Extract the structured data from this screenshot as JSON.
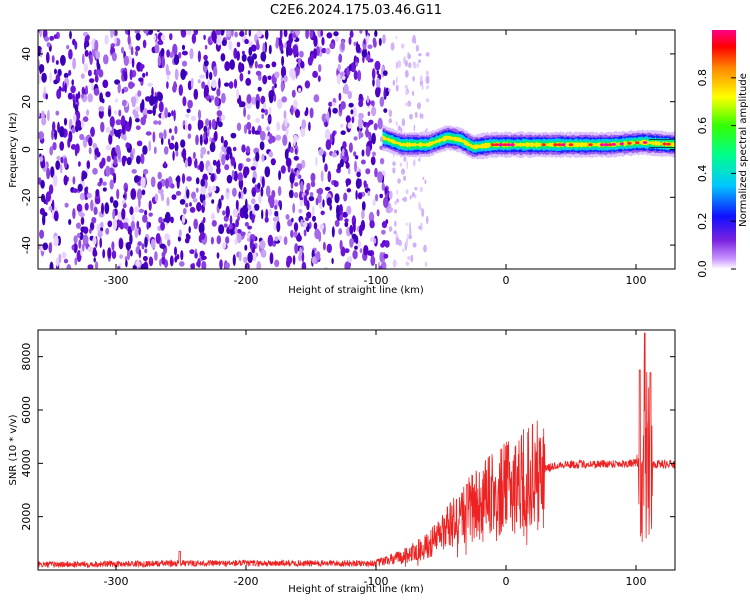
{
  "title": "C2E6.2024.175.03.46.G11",
  "chart_data": [
    {
      "type": "heatmap",
      "xlabel": "Height of straight line (km)",
      "ylabel": "Frequency (Hz)",
      "xlim": [
        -360,
        130
      ],
      "ylim": [
        -50,
        50
      ],
      "xticks": [
        -300,
        -200,
        -100,
        0,
        100
      ],
      "yticks": [
        -40,
        -20,
        0,
        20,
        40
      ],
      "colorbar": {
        "label": "Normalized spectral amplitude",
        "range": [
          0,
          1
        ],
        "ticks": [
          0.0,
          0.2,
          0.4,
          0.6,
          0.8
        ]
      },
      "regions": [
        {
          "x_range": [
            -360,
            -90
          ],
          "description_value": "noise",
          "mean_amplitude": 0.05
        },
        {
          "x_range": [
            -90,
            -60
          ],
          "description_value": "sparse noise",
          "mean_amplitude": 0.02
        }
      ],
      "signal_track": [
        {
          "x": -95,
          "freq": 5,
          "amplitude": 0.45
        },
        {
          "x": -80,
          "freq": 2,
          "amplitude": 0.55
        },
        {
          "x": -60,
          "freq": 2,
          "amplitude": 0.6
        },
        {
          "x": -45,
          "freq": 5,
          "amplitude": 0.6
        },
        {
          "x": -35,
          "freq": 4,
          "amplitude": 0.65
        },
        {
          "x": -25,
          "freq": 1,
          "amplitude": 0.7
        },
        {
          "x": -10,
          "freq": 2,
          "amplitude": 0.75
        },
        {
          "x": 10,
          "freq": 2,
          "amplitude": 0.8
        },
        {
          "x": 40,
          "freq": 2,
          "amplitude": 0.85
        },
        {
          "x": 80,
          "freq": 2,
          "amplitude": 0.9
        },
        {
          "x": 105,
          "freq": 3,
          "amplitude": 0.9
        },
        {
          "x": 130,
          "freq": 2,
          "amplitude": 0.9
        }
      ]
    },
    {
      "type": "line",
      "xlabel": "Height of straight line (km)",
      "ylabel": "SNR (10 * v/v)",
      "xlim": [
        -360,
        130
      ],
      "ylim": [
        0,
        9000
      ],
      "xticks": [
        -300,
        -200,
        -100,
        0,
        100
      ],
      "yticks": [
        2000,
        4000,
        6000,
        8000
      ],
      "color": "#ee2222",
      "trend": [
        {
          "x": -360,
          "y": 200
        },
        {
          "x": -250,
          "y": 250
        },
        {
          "x": -100,
          "y": 250
        },
        {
          "x": -80,
          "y": 500
        },
        {
          "x": -60,
          "y": 900
        },
        {
          "x": -40,
          "y": 1800
        },
        {
          "x": -20,
          "y": 2600
        },
        {
          "x": 0,
          "y": 3100
        },
        {
          "x": 20,
          "y": 3600
        },
        {
          "x": 40,
          "y": 3950
        },
        {
          "x": 100,
          "y": 4000
        },
        {
          "x": 130,
          "y": 3950
        }
      ],
      "spikes": [
        {
          "x": -251,
          "y": 700
        },
        {
          "x": -30,
          "y": 3200
        },
        {
          "x": 103,
          "y": 7500
        },
        {
          "x": 107,
          "y": 8900
        },
        {
          "x": 111,
          "y": 7400
        }
      ]
    }
  ]
}
